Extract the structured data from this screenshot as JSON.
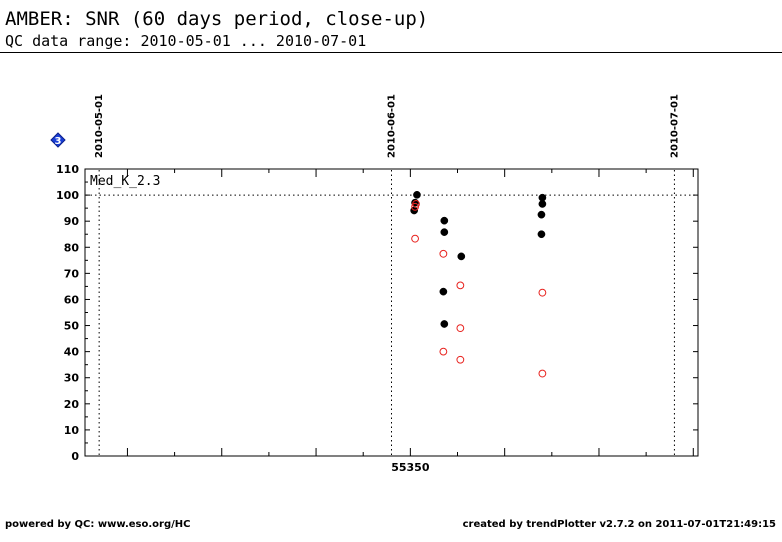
{
  "header": {
    "title": "AMBER: SNR (60 days period, close-up)",
    "subtitle": "QC data range: 2010-05-01 ... 2010-07-01"
  },
  "footer": {
    "left": "powered by QC: www.eso.org/HC",
    "right": "created by trendPlotter v2.7.2 on 2011-07-01T21:49:15"
  },
  "badge": {
    "icon": "diamond-badge-icon",
    "label": "3",
    "color": "#1a3fd6"
  },
  "chart_data": {
    "type": "scatter",
    "panel_label": "Med_K_2.3",
    "xlim": [
      55315.5,
      55380.5
    ],
    "ylim": [
      0,
      110
    ],
    "yticks": [
      0,
      10,
      20,
      30,
      40,
      50,
      60,
      70,
      80,
      90,
      100,
      110
    ],
    "xtick_labels": [
      {
        "x": 55350,
        "label": "55350"
      }
    ],
    "date_markers": [
      {
        "x": 55317,
        "label": "2010-05-01"
      },
      {
        "x": 55348,
        "label": "2010-06-01"
      },
      {
        "x": 55378,
        "label": "2010-07-01"
      }
    ],
    "reference_line_y": 100,
    "grid": false,
    "series": [
      {
        "color": "#000000",
        "marker": "filled-circle",
        "points": [
          {
            "x": 55350.7,
            "y": 100.1
          },
          {
            "x": 55350.5,
            "y": 97.1
          },
          {
            "x": 55350.4,
            "y": 94.1
          },
          {
            "x": 55353.6,
            "y": 90.2
          },
          {
            "x": 55353.6,
            "y": 85.8
          },
          {
            "x": 55355.4,
            "y": 76.5
          },
          {
            "x": 55353.5,
            "y": 63.0
          },
          {
            "x": 55353.6,
            "y": 50.6
          },
          {
            "x": 55364.0,
            "y": 99.0
          },
          {
            "x": 55364.0,
            "y": 96.6
          },
          {
            "x": 55363.9,
            "y": 92.5
          },
          {
            "x": 55363.9,
            "y": 85.0
          }
        ]
      },
      {
        "color": "#e8231f",
        "marker": "open-circle",
        "points": [
          {
            "x": 55350.6,
            "y": 96.6
          },
          {
            "x": 55350.5,
            "y": 95.5
          },
          {
            "x": 55350.5,
            "y": 83.3
          },
          {
            "x": 55353.5,
            "y": 77.5
          },
          {
            "x": 55355.3,
            "y": 65.4
          },
          {
            "x": 55355.3,
            "y": 49.0
          },
          {
            "x": 55353.5,
            "y": 40.0
          },
          {
            "x": 55355.3,
            "y": 36.9
          },
          {
            "x": 55364.0,
            "y": 62.6
          },
          {
            "x": 55364.0,
            "y": 31.6
          }
        ]
      }
    ]
  }
}
